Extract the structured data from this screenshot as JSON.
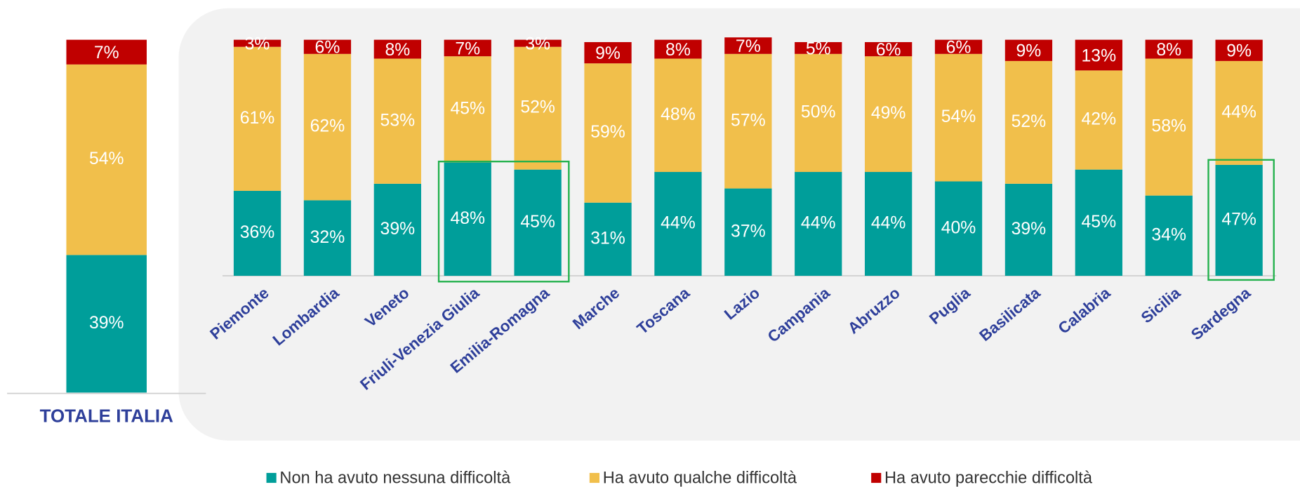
{
  "chart_data": {
    "type": "stacked_bar",
    "categories": [
      "TOTALE ITALIA",
      "Piemonte",
      "Lombardia",
      "Veneto",
      "Friuli-Venezia Giulia",
      "Emilia-Romagna",
      "Marche",
      "Toscana",
      "Lazio",
      "Campania",
      "Abruzzo",
      "Puglia",
      "Basilicata",
      "Calabria",
      "Sicilia",
      "Sardegna"
    ],
    "series": [
      {
        "name": "Non ha avuto nessuna difficoltà",
        "color": "#009e9a",
        "values": [
          39,
          36,
          32,
          39,
          48,
          45,
          31,
          44,
          37,
          44,
          44,
          40,
          39,
          45,
          34,
          47
        ],
        "value_labels": [
          "39%",
          "36%",
          "32%",
          "39%",
          "48%",
          "45%",
          "31%",
          "44%",
          "37%",
          "44%",
          "44%",
          "40%",
          "39%",
          "45%",
          "34%",
          "47%"
        ]
      },
      {
        "name": "Ha avuto qualche difficoltà",
        "color": "#f1bf4b",
        "values": [
          54,
          61,
          62,
          53,
          45,
          52,
          59,
          48,
          57,
          50,
          49,
          54,
          52,
          42,
          58,
          44
        ],
        "value_labels": [
          "54%",
          "61%",
          "62%",
          "53%",
          "45%",
          "52%",
          "59%",
          "48%",
          "57%",
          "50%",
          "49%",
          "54%",
          "52%",
          "42%",
          "58%",
          "44%"
        ]
      },
      {
        "name": "Ha avuto parecchie difficoltà",
        "color": "#c00000",
        "values": [
          7,
          3,
          6,
          8,
          7,
          3,
          9,
          8,
          7,
          5,
          6,
          6,
          9,
          13,
          8,
          9
        ],
        "value_labels": [
          "7%",
          "3%",
          "6%",
          "8%",
          "7%",
          "3%",
          "9%",
          "8%",
          "7%",
          "5%",
          "6%",
          "6%",
          "9%",
          "13%",
          "8%",
          "9%"
        ]
      }
    ]
  }
}
